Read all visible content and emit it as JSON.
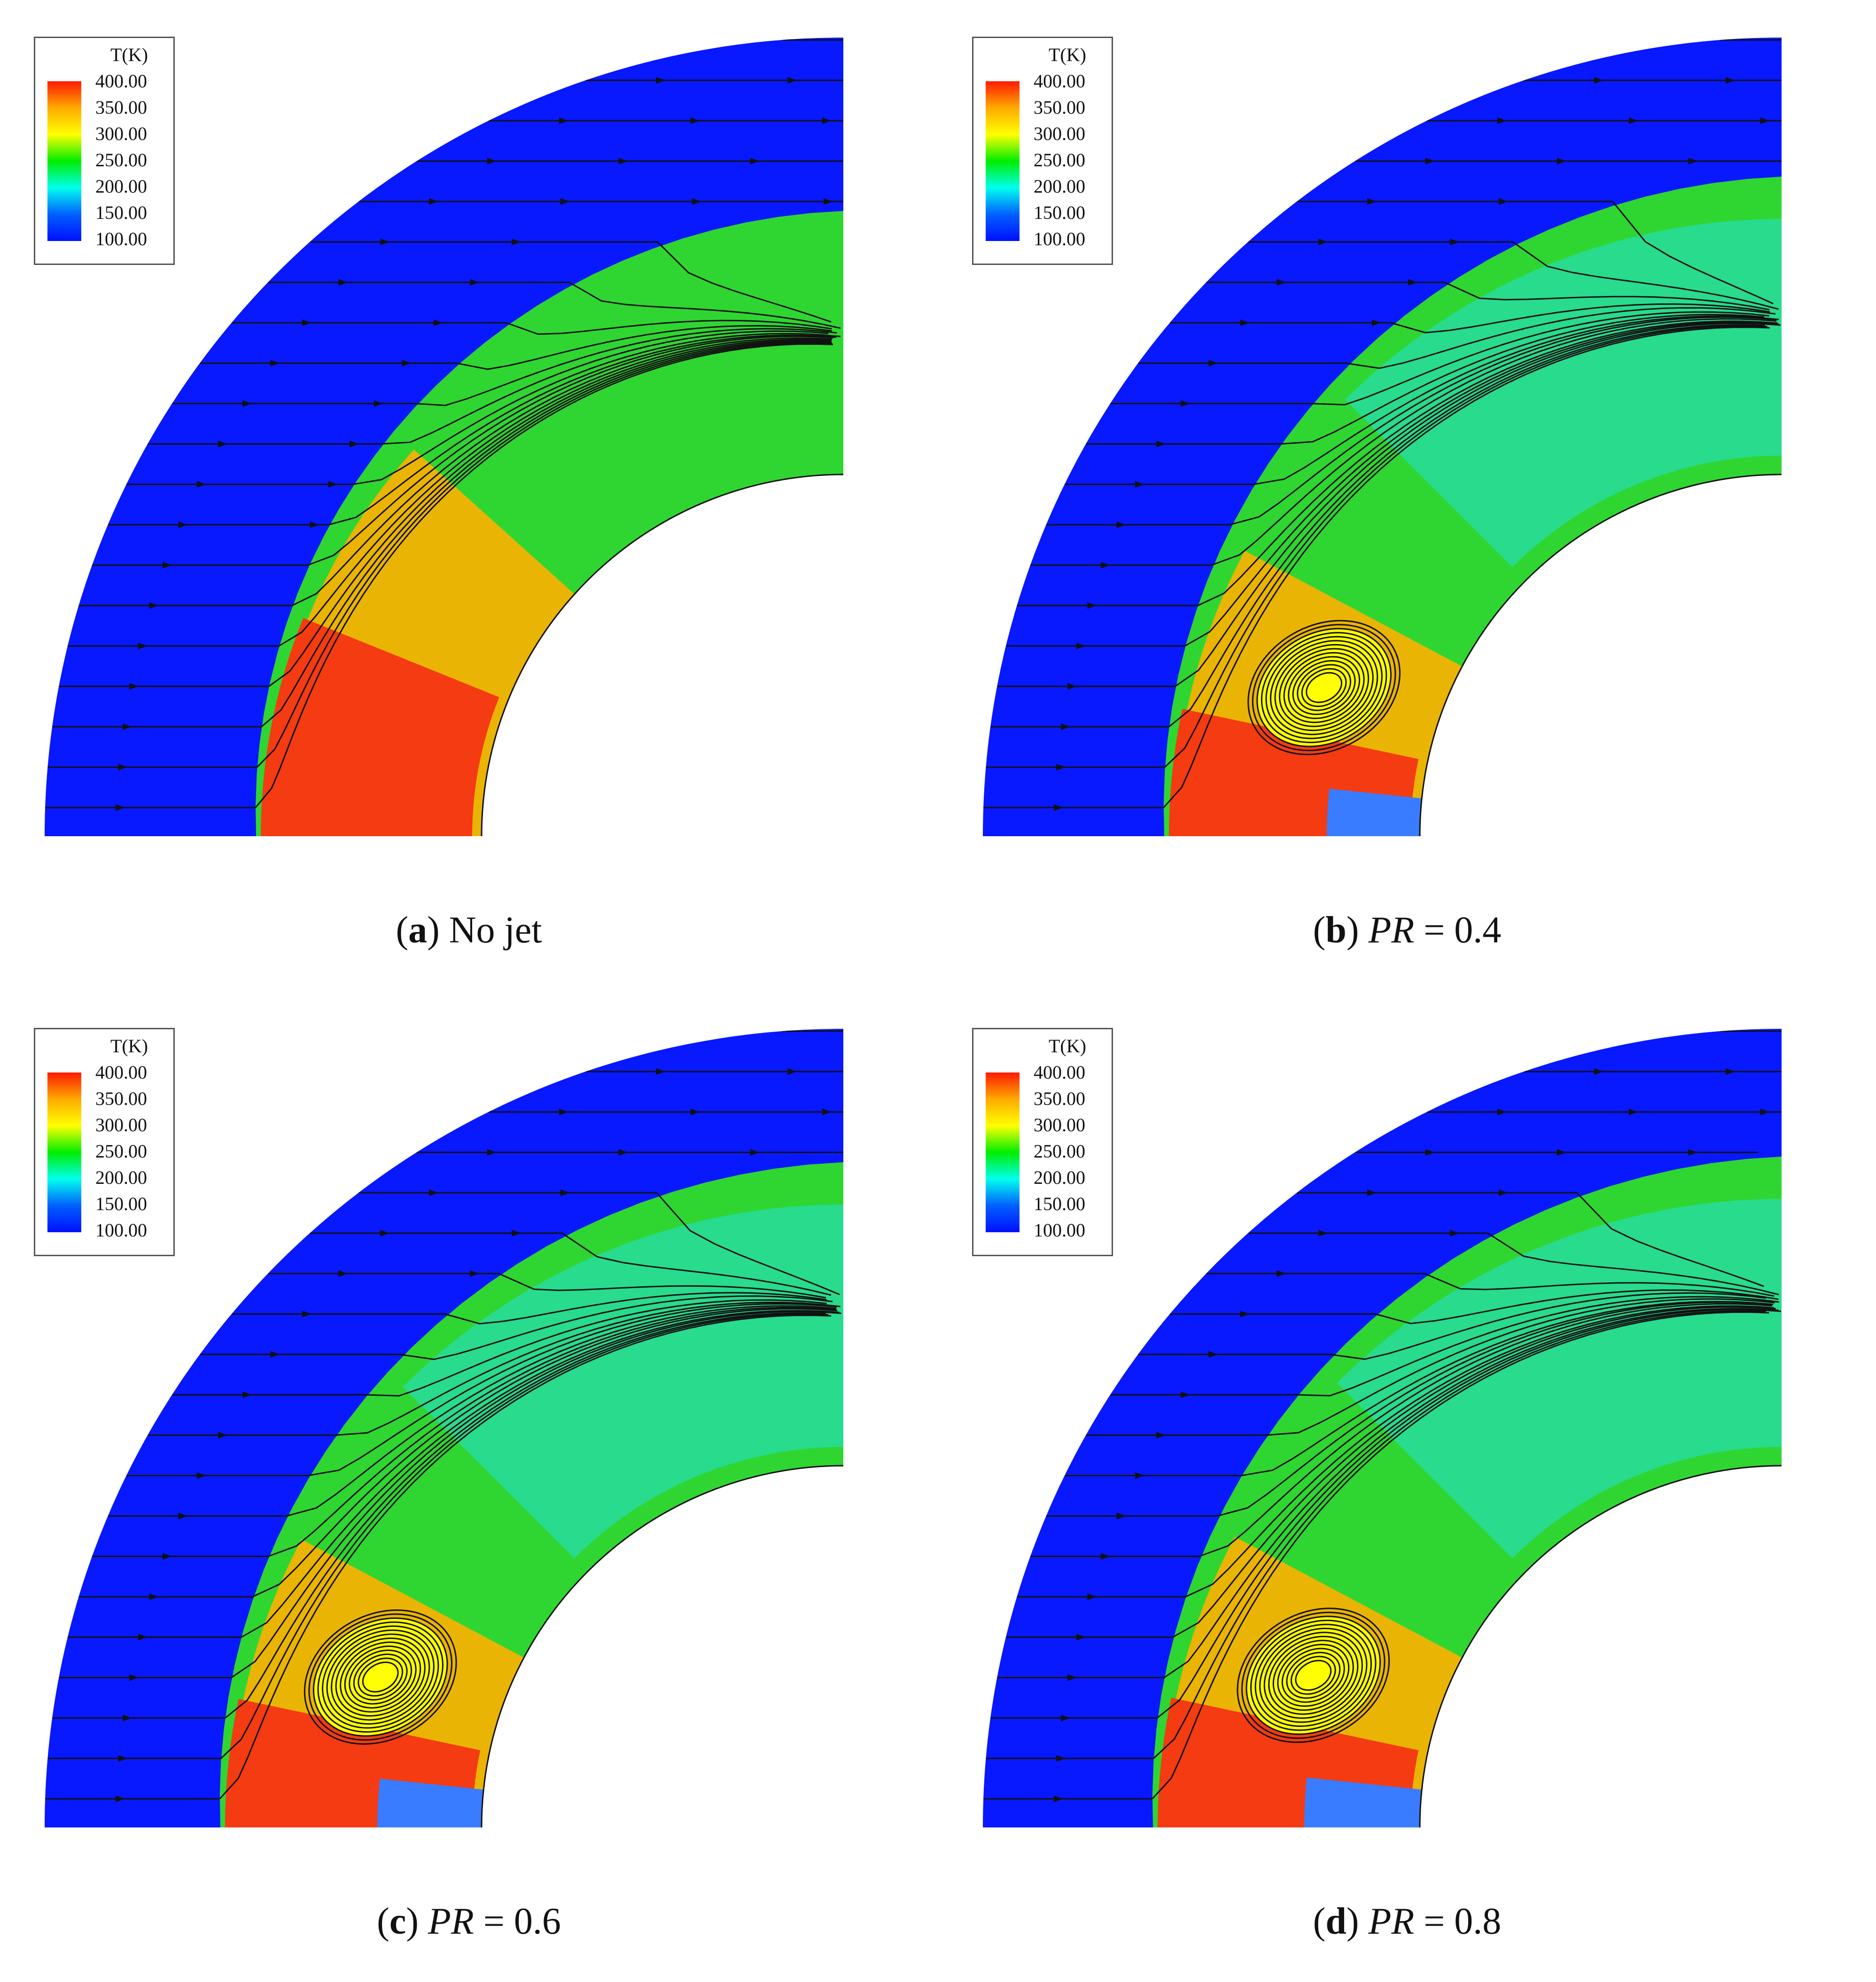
{
  "legend": {
    "title": "T(K)",
    "ticks": [
      "400.00",
      "350.00",
      "300.00",
      "250.00",
      "200.00",
      "150.00",
      "100.00"
    ],
    "colors": [
      "#ff1a00",
      "#ffaa00",
      "#ffff00",
      "#00ee00",
      "#00ffee",
      "#0060ff",
      "#0010ff"
    ]
  },
  "colors": {
    "freestream": "#0818ff",
    "shock_layer": "#2fd631",
    "stagnation": "#f43b12",
    "warm": "#ffb000",
    "cool": "#22e0d8",
    "jet": "#3a7cff",
    "streamline": "#111111"
  },
  "panels": [
    {
      "letter": "a",
      "label": " No jet",
      "pr_value": "",
      "jet": false
    },
    {
      "letter": "b",
      "label": "",
      "pr_symbol": "PR",
      "pr_value": " = 0.4",
      "jet": true
    },
    {
      "letter": "c",
      "label": "",
      "pr_symbol": "PR",
      "pr_value": " = 0.6",
      "jet": true
    },
    {
      "letter": "d",
      "label": "",
      "pr_symbol": "PR",
      "pr_value": " = 0.8",
      "jet": true
    }
  ]
}
